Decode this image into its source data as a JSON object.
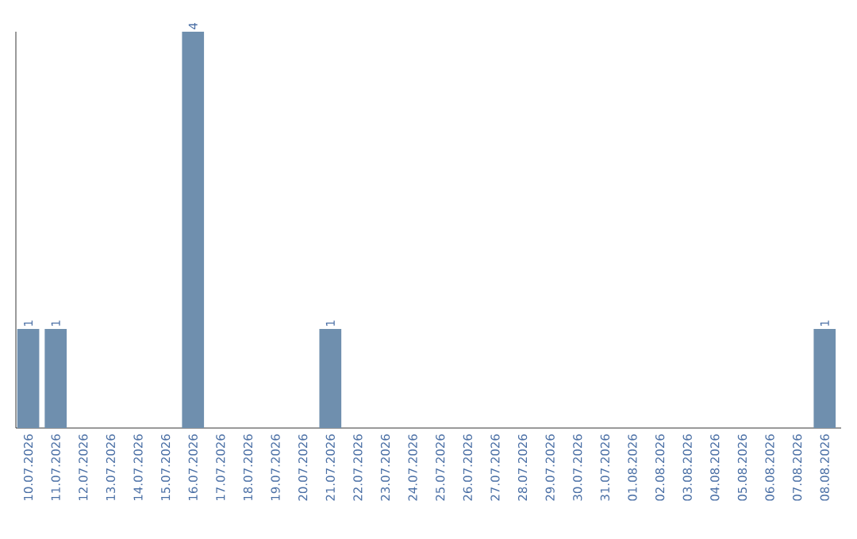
{
  "chart_data": {
    "type": "bar",
    "categories": [
      "10.07.2026",
      "11.07.2026",
      "12.07.2026",
      "13.07.2026",
      "14.07.2026",
      "15.07.2026",
      "16.07.2026",
      "17.07.2026",
      "18.07.2026",
      "19.07.2026",
      "20.07.2026",
      "21.07.2026",
      "22.07.2026",
      "23.07.2026",
      "24.07.2026",
      "25.07.2026",
      "26.07.2026",
      "27.07.2026",
      "28.07.2026",
      "29.07.2026",
      "30.07.2026",
      "31.07.2026",
      "01.08.2026",
      "02.08.2026",
      "03.08.2026",
      "04.08.2026",
      "05.08.2026",
      "06.08.2026",
      "07.08.2026",
      "08.08.2026"
    ],
    "values": [
      1,
      1,
      0,
      0,
      0,
      0,
      4,
      0,
      0,
      0,
      0,
      1,
      0,
      0,
      0,
      0,
      0,
      0,
      0,
      0,
      0,
      0,
      0,
      0,
      0,
      0,
      0,
      0,
      0,
      1
    ],
    "value_labels": [
      "1",
      "1",
      null,
      null,
      null,
      null,
      "4",
      null,
      null,
      null,
      null,
      "1",
      null,
      null,
      null,
      null,
      null,
      null,
      null,
      null,
      null,
      null,
      null,
      null,
      null,
      null,
      null,
      null,
      null,
      "1"
    ],
    "color": "#6f8fae"
  }
}
